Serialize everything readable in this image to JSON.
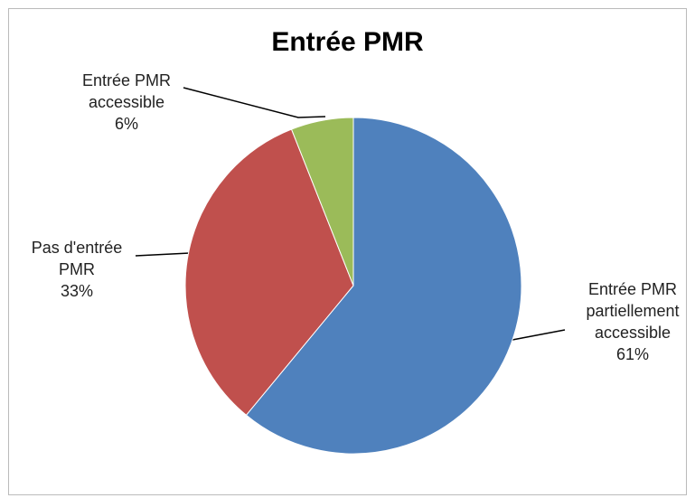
{
  "chart_data": {
    "type": "pie",
    "title": "Entrée PMR",
    "categories": [
      "Entrée PMR partiellement accessible",
      "Pas d'entrée PMR",
      "Entrée PMR accessible"
    ],
    "values": [
      61,
      33,
      6
    ],
    "value_labels": [
      "61%",
      "33%",
      "6%"
    ],
    "colors": [
      "#4f81bd",
      "#c0504d",
      "#9bbb59"
    ]
  }
}
